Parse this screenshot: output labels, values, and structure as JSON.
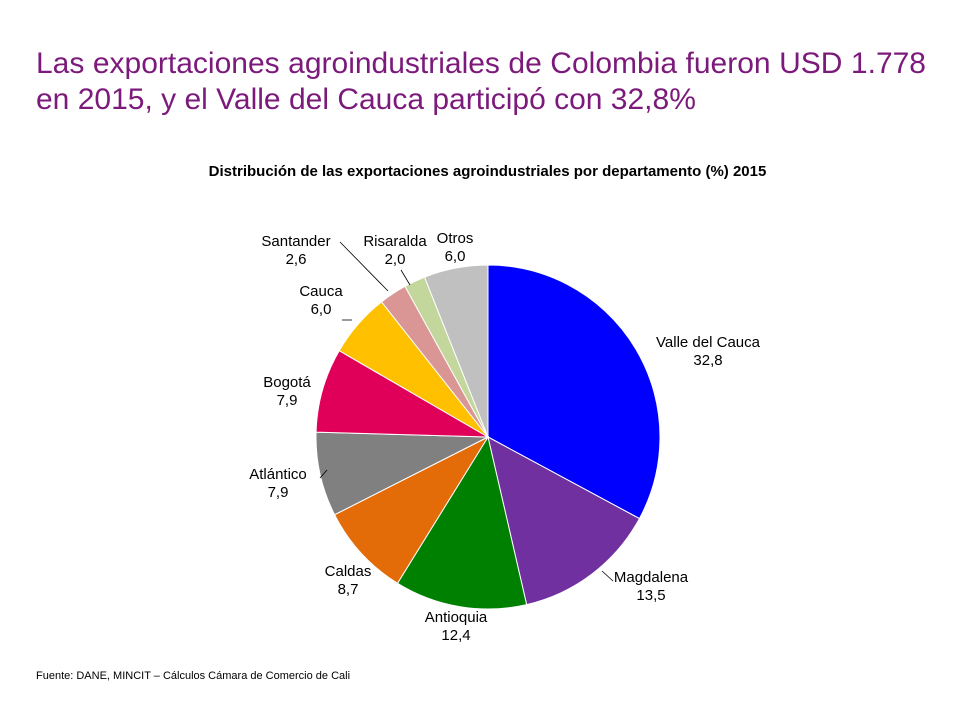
{
  "slide_title": "Las exportaciones agroindustriales de Colombia fueron USD 1.778 en 2015, y el Valle del Cauca participó con 32,8%",
  "source": "Fuente: DANE, MINCIT – Cálculos Cámara de Comercio de Cali",
  "chart_data": {
    "type": "pie",
    "title": "Distribución de las exportaciones agroindustriales por departamento (%) 2015",
    "start_angle": "12 o'clock, clockwise",
    "slices": [
      {
        "label": "Valle del Cauca",
        "value": 32.8,
        "display": "32,8",
        "color": "#0000ff"
      },
      {
        "label": "Magdalena",
        "value": 13.5,
        "display": "13,5",
        "color": "#7030a0"
      },
      {
        "label": "Antioquia",
        "value": 12.4,
        "display": "12,4",
        "color": "#008000"
      },
      {
        "label": "Caldas",
        "value": 8.7,
        "display": "8,7",
        "color": "#e36c09"
      },
      {
        "label": "Atlántico",
        "value": 7.9,
        "display": "7,9",
        "color": "#808080"
      },
      {
        "label": "Bogotá",
        "value": 7.9,
        "display": "7,9",
        "color": "#e0005a"
      },
      {
        "label": "Cauca",
        "value": 6.0,
        "display": "6,0",
        "color": "#ffc000"
      },
      {
        "label": "Santander",
        "value": 2.6,
        "display": "2,6",
        "color": "#d99694"
      },
      {
        "label": "Risaralda",
        "value": 2.0,
        "display": "2,0",
        "color": "#c3d69b"
      },
      {
        "label": "Otros",
        "value": 6.0,
        "display": "6,0",
        "color": "#c0c0c0"
      }
    ]
  }
}
